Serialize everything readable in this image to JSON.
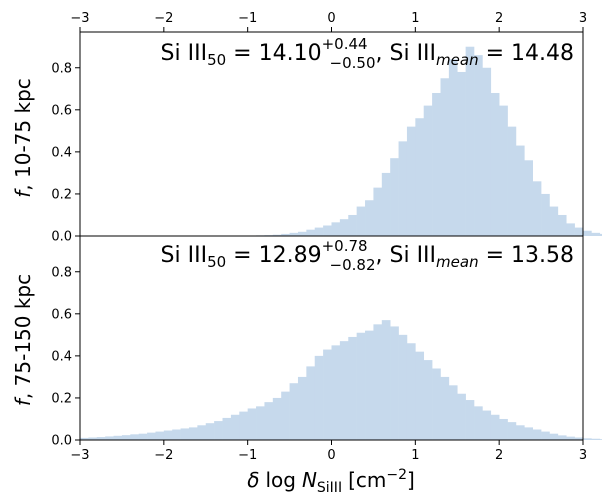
{
  "chart_data": [
    {
      "type": "bar",
      "panel": "top",
      "ylabel": "f, 10-75 kpc",
      "xlim": [
        -3,
        3
      ],
      "ylim": [
        0,
        0.97
      ],
      "yticks": [
        0.0,
        0.2,
        0.4,
        0.6,
        0.8
      ],
      "xticks_top": [
        -3,
        -2,
        -1,
        0,
        1,
        2,
        3
      ],
      "annotation": {
        "name": "Si III",
        "sub50": "50",
        "median": "14.10",
        "plus": "+0.44",
        "minus": "−0.50",
        "mean_label": "mean",
        "mean": "14.48"
      },
      "bin_start": -3.0,
      "bin_width": 0.1,
      "values": [
        0.0,
        0.0,
        0.0,
        0.0,
        0.0,
        0.0,
        0.0,
        0.0,
        0.0,
        0.0,
        0.0,
        0.0,
        0.0,
        0.0,
        0.0,
        0.0,
        0.0,
        0.0,
        0.0,
        0.0,
        0.002,
        0.003,
        0.004,
        0.006,
        0.01,
        0.015,
        0.02,
        0.03,
        0.04,
        0.05,
        0.065,
        0.08,
        0.1,
        0.14,
        0.17,
        0.23,
        0.3,
        0.37,
        0.45,
        0.52,
        0.56,
        0.62,
        0.68,
        0.75,
        0.84,
        0.78,
        0.9,
        0.86,
        0.8,
        0.68,
        0.62,
        0.52,
        0.43,
        0.36,
        0.26,
        0.2,
        0.14,
        0.1,
        0.06,
        0.04,
        0.025,
        0.015,
        0.01,
        0.006,
        0.004,
        0.002,
        0.0,
        0.0,
        0.0,
        0.0
      ]
    },
    {
      "type": "bar",
      "panel": "bottom",
      "ylabel": "f, 75-150 kpc",
      "xlabel": "δ log N_SiIII [cm^−2]",
      "xlim": [
        -3,
        3
      ],
      "ylim": [
        0,
        0.97
      ],
      "yticks": [
        0.0,
        0.2,
        0.4,
        0.6,
        0.8
      ],
      "xticks": [
        -3,
        -2,
        -1,
        0,
        1,
        2,
        3
      ],
      "annotation": {
        "name": "Si III",
        "sub50": "50",
        "median": "12.89",
        "plus": "+0.78",
        "minus": "−0.82",
        "mean_label": "mean",
        "mean": "13.58"
      },
      "bin_start": -3.0,
      "bin_width": 0.1,
      "values": [
        0.01,
        0.012,
        0.014,
        0.017,
        0.02,
        0.023,
        0.027,
        0.03,
        0.035,
        0.04,
        0.045,
        0.05,
        0.055,
        0.06,
        0.07,
        0.08,
        0.09,
        0.105,
        0.12,
        0.135,
        0.15,
        0.16,
        0.18,
        0.2,
        0.23,
        0.27,
        0.3,
        0.35,
        0.4,
        0.43,
        0.45,
        0.47,
        0.49,
        0.51,
        0.52,
        0.55,
        0.57,
        0.54,
        0.5,
        0.46,
        0.42,
        0.38,
        0.34,
        0.3,
        0.26,
        0.22,
        0.19,
        0.16,
        0.14,
        0.12,
        0.1,
        0.085,
        0.07,
        0.06,
        0.05,
        0.04,
        0.03,
        0.022,
        0.016,
        0.012,
        0.008,
        0.006,
        0.004,
        0.003,
        0.002,
        0.001,
        0.0,
        0.0,
        0.0,
        0.0
      ]
    }
  ],
  "xlabel_parts": {
    "delta": "δ",
    "log": "log",
    "N": "N",
    "sub": "SiIII",
    "unit": "[cm",
    "exp": "−2",
    "close": "]"
  }
}
